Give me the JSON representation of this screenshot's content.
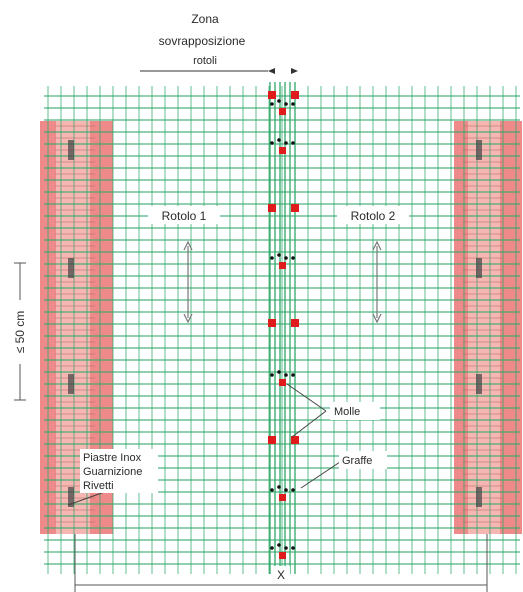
{
  "diagram": {
    "zone_label_line1": "Zona",
    "zone_label_line2": "sovrapposizione",
    "zone_label_line3": "rotoli",
    "roll_1_label": "Rotolo 1",
    "roll_2_label": "Rotolo 2",
    "spacing_label": "≤ 50 cm",
    "springs_label": "Molle",
    "clips_label": "Graffe",
    "plates_line1": "Piastre Inox",
    "plates_line2": "Guarnizione",
    "plates_line3": "Rivetti",
    "width_label": "X"
  },
  "colors": {
    "grid_green": "#2fa86a",
    "plate_pink": "#ee8a8a",
    "plate_light": "#f6b7b3",
    "marker_red": "#e01b1b",
    "marker_black": "#111111"
  }
}
